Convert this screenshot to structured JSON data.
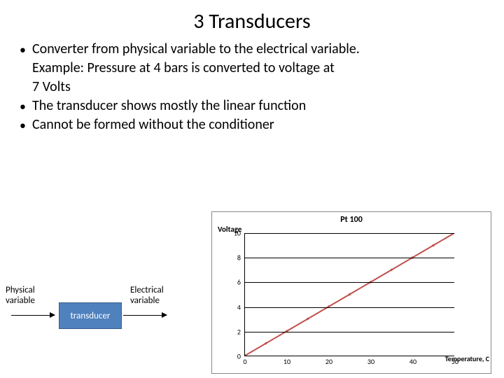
{
  "title": "3 Transducers",
  "bullets": [
    "Converter from physical variable to the electrical variable.",
    "The transducer shows mostly the linear function",
    "Cannot be formed without the conditioner"
  ],
  "example_lines": [
    "Example: Pressure at 4 bars is converted to voltage at",
    "7 Volts"
  ],
  "diagram": {
    "left_label_l1": "Physical",
    "left_label_l2": "variable",
    "right_label_l1": "Electrical",
    "right_label_l2": "variable",
    "box_label": "transducer",
    "box_fill": "#4f81bd",
    "box_border": "#385d8a"
  },
  "chart": {
    "type": "line",
    "title": "Pt 100",
    "ylabel": "Voltage",
    "xlabel": "Temperature, C",
    "xlim": [
      0,
      50
    ],
    "ylim": [
      0,
      10
    ],
    "xticks": [
      0,
      10,
      20,
      30,
      40,
      50
    ],
    "yticks": [
      0,
      2,
      4,
      6,
      8,
      10
    ],
    "background": "#ffffff",
    "grid_color": "#000000",
    "line_color": "#c0504d",
    "marker_color": "#c0504d",
    "line_width": 2,
    "marker_size": 3,
    "x": [
      0,
      5,
      10,
      15,
      20,
      25,
      30,
      35,
      40,
      45,
      50
    ],
    "y": [
      0,
      1,
      2,
      3,
      4,
      5,
      6,
      7,
      8,
      9,
      10
    ]
  }
}
